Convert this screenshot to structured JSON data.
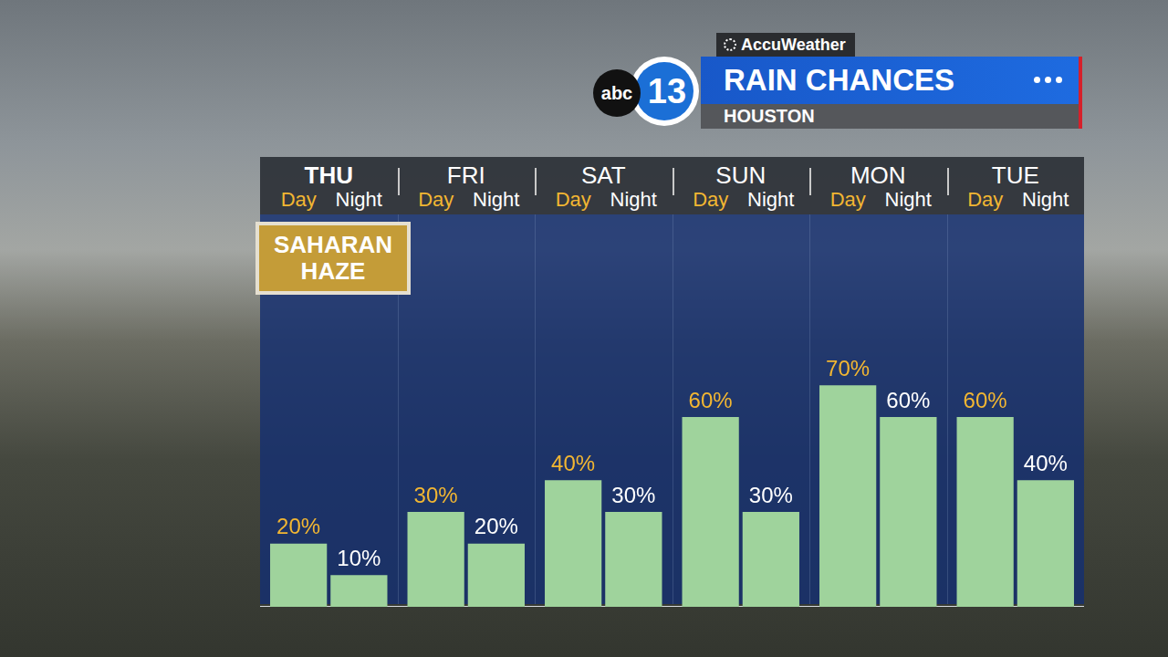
{
  "header": {
    "source": "AccuWeather",
    "logo": [
      "abc",
      "13"
    ]
  },
  "chart_data": {
    "type": "bar",
    "title": "RAIN CHANCES",
    "subtitle": "HOUSTON",
    "annotations": [
      "SAHARAN HAZE"
    ],
    "categories": [
      "THU",
      "FRI",
      "SAT",
      "SUN",
      "MON",
      "TUE"
    ],
    "series": [
      {
        "name": "Day",
        "color": "#9fd39c",
        "values": [
          20,
          30,
          40,
          60,
          70,
          60
        ],
        "value_labels": [
          "20%",
          "30%",
          "40%",
          "60%",
          "70%",
          "60%"
        ]
      },
      {
        "name": "Night",
        "color": "#9fd39c",
        "values": [
          10,
          20,
          30,
          30,
          60,
          40
        ],
        "value_labels": [
          "10%",
          "20%",
          "30%",
          "30%",
          "60%",
          "40%"
        ]
      }
    ],
    "ylim": [
      0,
      124
    ],
    "grid": false,
    "data_labels": true,
    "tick_labels": "x"
  }
}
